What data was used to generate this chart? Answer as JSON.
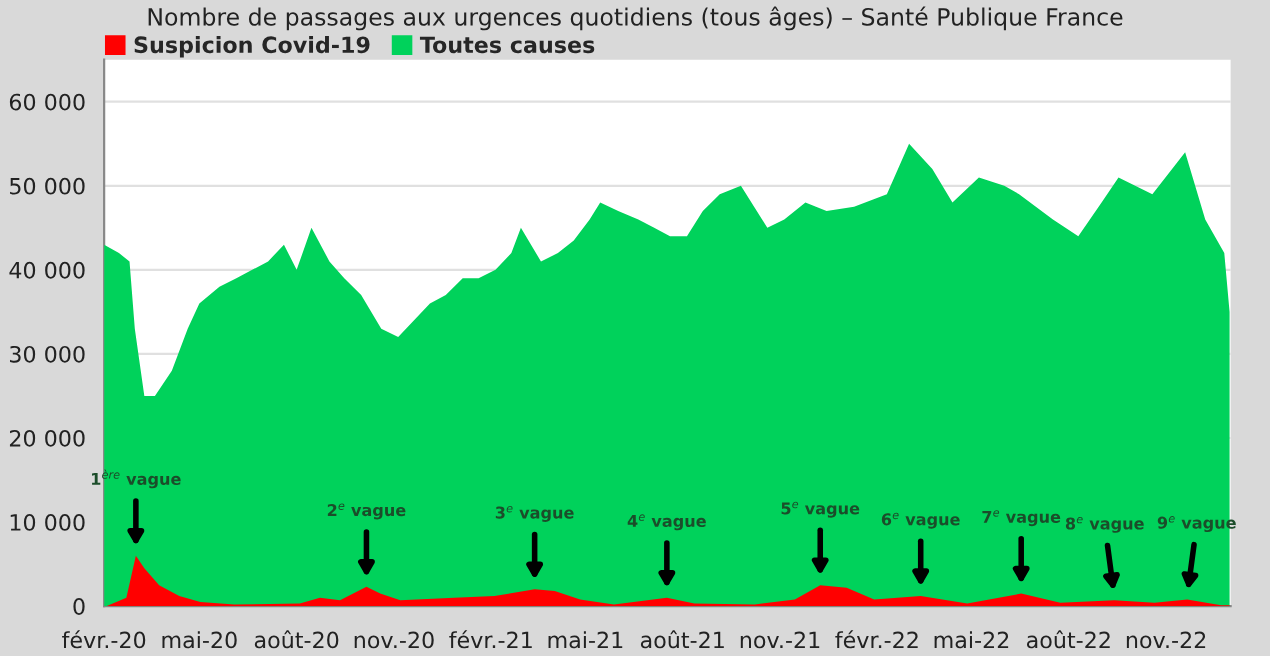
{
  "chart_data": {
    "type": "area",
    "title": "Nombre de passages aux urgences quotidiens (tous âges) – Santé Publique France",
    "xlim": [
      "2020-02-01",
      "2023-01-01"
    ],
    "xticks": [
      {
        "value": "2020-02-01",
        "label": "févr.-20"
      },
      {
        "value": "2020-05-01",
        "label": "mai-20"
      },
      {
        "value": "2020-08-01",
        "label": "août-20"
      },
      {
        "value": "2020-11-01",
        "label": "nov.-20"
      },
      {
        "value": "2021-02-01",
        "label": "févr.-21"
      },
      {
        "value": "2021-05-01",
        "label": "mai-21"
      },
      {
        "value": "2021-08-01",
        "label": "août-21"
      },
      {
        "value": "2021-11-01",
        "label": "nov.-21"
      },
      {
        "value": "2022-02-01",
        "label": "févr.-22"
      },
      {
        "value": "2022-05-01",
        "label": "mai-22"
      },
      {
        "value": "2022-08-01",
        "label": "août-22"
      },
      {
        "value": "2022-11-01",
        "label": "nov.-22"
      }
    ],
    "ylim": [
      0,
      65000
    ],
    "yticks": [
      0,
      {
        "value": 10000,
        "label": "10 000"
      },
      {
        "value": 20000,
        "label": "20 000"
      },
      {
        "value": 30000,
        "label": "30 000"
      },
      {
        "value": 40000,
        "label": "40 000"
      },
      {
        "value": 50000,
        "label": "50 000"
      },
      {
        "value": 60000,
        "label": "60 000"
      }
    ],
    "grid": "y",
    "legend": "top left",
    "series": [
      {
        "name": "Suspicion Covid-19",
        "color": "#ff0000",
        "x": [
          "2020-02-03",
          "2020-02-22",
          "2020-03-02",
          "2020-03-10",
          "2020-03-24",
          "2020-04-12",
          "2020-05-02",
          "2020-06-03",
          "2020-08-04",
          "2020-08-23",
          "2020-09-11",
          "2020-10-06",
          "2020-10-19",
          "2020-11-07",
          "2020-12-28",
          "2021-02-04",
          "2021-03-14",
          "2021-04-02",
          "2021-04-26",
          "2021-05-28",
          "2021-07-17",
          "2021-08-12",
          "2021-10-08",
          "2021-11-15",
          "2021-12-09",
          "2022-01-03",
          "2022-01-29",
          "2022-03-14",
          "2022-04-27",
          "2022-06-17",
          "2022-07-24",
          "2022-09-13",
          "2022-10-21",
          "2022-11-21",
          "2022-12-23",
          "2022-12-31"
        ],
        "values": [
          0,
          1000,
          6000,
          4500,
          2500,
          1200,
          500,
          200,
          300,
          1000,
          700,
          2300,
          1500,
          700,
          1000,
          1200,
          2000,
          1800,
          800,
          200,
          1000,
          300,
          200,
          800,
          2500,
          2200,
          800,
          1200,
          300,
          1500,
          400,
          700,
          400,
          800,
          100,
          100
        ]
      },
      {
        "name": "Toutes causes",
        "color": "#00d25b",
        "x": [
          "2020-02-01",
          "2020-02-15",
          "2020-02-25",
          "2020-03-01",
          "2020-03-10",
          "2020-03-20",
          "2020-04-05",
          "2020-04-20",
          "2020-05-01",
          "2020-05-20",
          "2020-06-05",
          "2020-06-20",
          "2020-07-05",
          "2020-07-20",
          "2020-08-01",
          "2020-08-15",
          "2020-09-01",
          "2020-09-15",
          "2020-10-01",
          "2020-10-20",
          "2020-11-05",
          "2020-11-20",
          "2020-12-05",
          "2020-12-20",
          "2021-01-05",
          "2021-01-20",
          "2021-02-05",
          "2021-02-20",
          "2021-03-01",
          "2021-03-20",
          "2021-04-05",
          "2021-04-20",
          "2021-05-05",
          "2021-05-15",
          "2021-06-01",
          "2021-06-20",
          "2021-07-05",
          "2021-07-20",
          "2021-08-05",
          "2021-08-20",
          "2021-09-05",
          "2021-09-25",
          "2021-10-20",
          "2021-11-05",
          "2021-11-25",
          "2021-12-15",
          "2022-01-10",
          "2022-02-10",
          "2022-03-03",
          "2022-03-25",
          "2022-04-13",
          "2022-05-08",
          "2022-06-01",
          "2022-06-15",
          "2022-07-17",
          "2022-08-10",
          "2022-09-01",
          "2022-09-17",
          "2022-10-19",
          "2022-11-19",
          "2022-12-08",
          "2022-12-26",
          "2022-12-31"
        ],
        "values": [
          43000,
          42000,
          41000,
          33000,
          25000,
          25000,
          28000,
          33000,
          36000,
          38000,
          39000,
          40000,
          41000,
          43000,
          40000,
          45000,
          41000,
          39000,
          37000,
          33000,
          32000,
          34000,
          36000,
          37000,
          39000,
          39000,
          40000,
          42000,
          45000,
          41000,
          42000,
          43500,
          46000,
          48000,
          47000,
          46000,
          45000,
          44000,
          44000,
          47000,
          49000,
          50000,
          45000,
          46000,
          48000,
          47000,
          47500,
          49000,
          55000,
          52000,
          48000,
          51000,
          50000,
          49000,
          46000,
          44000,
          48000,
          51000,
          49000,
          54000,
          46000,
          42000,
          35000
        ]
      }
    ],
    "annotations": [
      {
        "text": "1$^{ère}$ vague",
        "x": "2020-03-02",
        "y": 6000
      },
      {
        "text": "2$^{e}$ vague",
        "x": "2020-10-06",
        "y": 2300
      },
      {
        "text": "3$^{e}$ vague",
        "x": "2021-03-14",
        "y": 2000
      },
      {
        "text": "4$^{e}$ vague",
        "x": "2021-07-17",
        "y": 1000
      },
      {
        "text": "5$^{e}$ vague",
        "x": "2021-12-09",
        "y": 2500
      },
      {
        "text": "6$^{e}$ vague",
        "x": "2022-03-14",
        "y": 1200
      },
      {
        "text": "7$^{e}$ vague",
        "x": "2022-06-17",
        "y": 1500
      },
      {
        "text": "8$^{e}$ vague",
        "x": "2022-09-13",
        "y": 700
      },
      {
        "text": "9$^{e}$ vague",
        "x": "2022-11-21",
        "y": 800
      }
    ]
  }
}
